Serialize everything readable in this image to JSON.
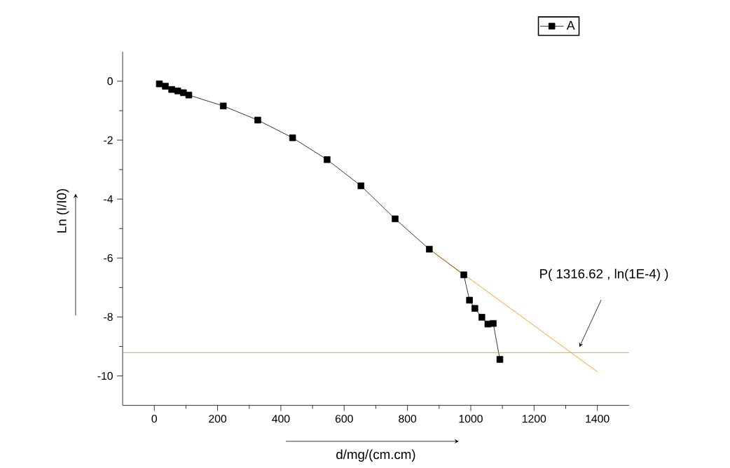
{
  "chart_data": {
    "type": "line",
    "xlabel": "d/mg/(cm.cm)",
    "ylabel": "Ln (I/I0)",
    "xlim": [
      -100,
      1500
    ],
    "ylim": [
      -11,
      1
    ],
    "xticks": [
      0,
      200,
      400,
      600,
      800,
      1000,
      1200,
      1400
    ],
    "yticks": [
      -10,
      -8,
      -6,
      -4,
      -2,
      0
    ],
    "marker": "square",
    "legend": "top right",
    "grid": false,
    "series": [
      {
        "name": "A",
        "color": "#000000",
        "x": [
          16,
          35,
          55,
          74,
          92,
          109,
          218,
          327,
          437,
          546,
          653,
          761,
          869,
          978,
          996,
          1013,
          1035,
          1054,
          1071,
          1092
        ],
        "values": [
          -0.09,
          -0.17,
          -0.28,
          -0.33,
          -0.39,
          -0.47,
          -0.84,
          -1.32,
          -1.92,
          -2.66,
          -3.55,
          -4.67,
          -5.7,
          -6.57,
          -7.43,
          -7.71,
          -8.01,
          -8.24,
          -8.22,
          -9.44
        ]
      },
      {
        "type": "line",
        "color": "#ff8000",
        "marker": "none",
        "x": [
          869,
          1400
        ],
        "values": [
          -5.7,
          -9.86
        ]
      }
    ],
    "ref_lines": [
      {
        "axis": "y",
        "value": -9.21,
        "color": "#ff8000"
      }
    ],
    "annotations": [
      "P( 1316.62 , ln(1E-4) )"
    ]
  }
}
